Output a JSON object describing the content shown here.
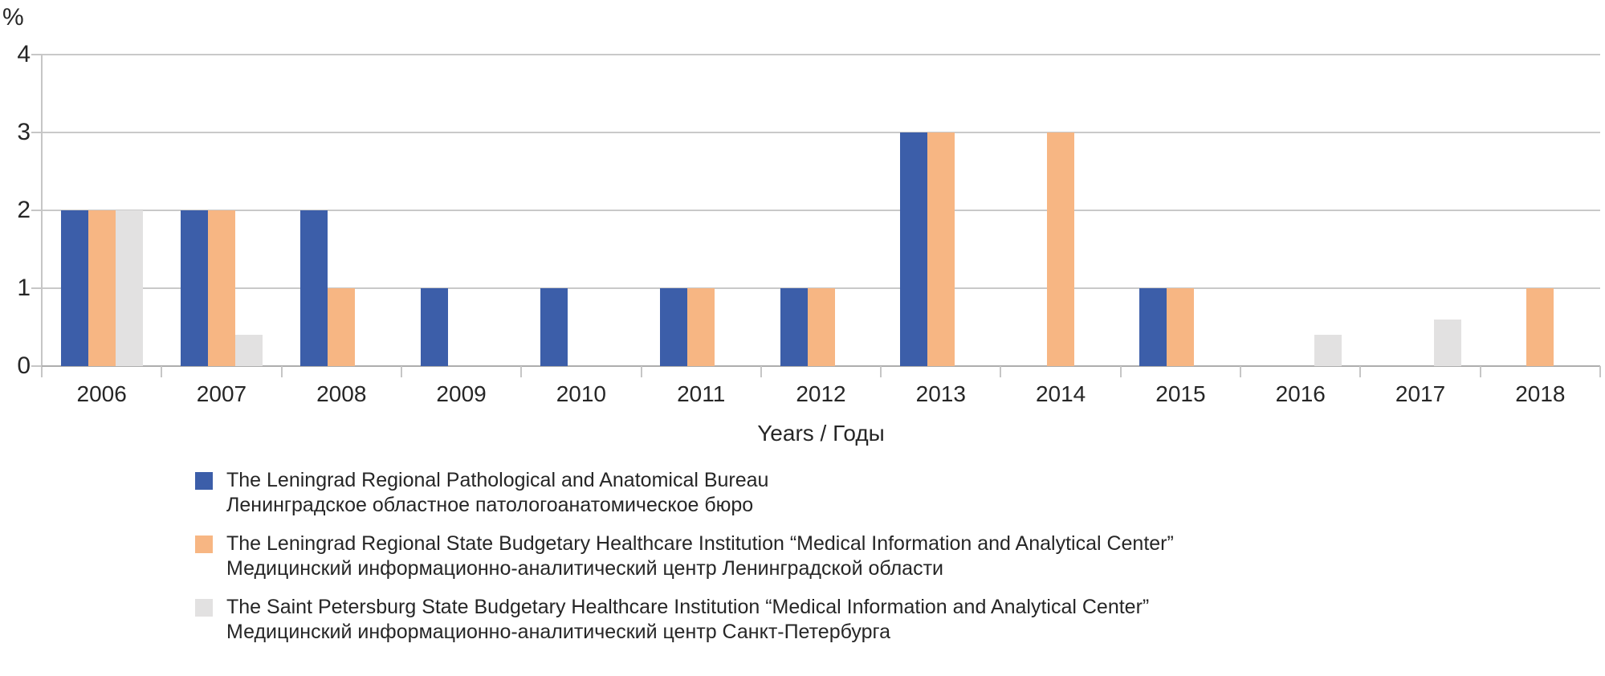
{
  "chart_data": {
    "type": "bar",
    "title": "",
    "ylabel": "%",
    "xlabel": "Years / Годы",
    "categories": [
      "2006",
      "2007",
      "2008",
      "2009",
      "2010",
      "2011",
      "2012",
      "2013",
      "2014",
      "2015",
      "2016",
      "2017",
      "2018"
    ],
    "ylim": [
      0,
      4
    ],
    "yticks": [
      0,
      1,
      2,
      3,
      4
    ],
    "grid": "horizontal",
    "legend_position": "bottom-left",
    "series": [
      {
        "name_en": "The Leningrad Regional Pathological and Anatomical Bureau",
        "name_ru": "Ленинградское областное патологоанатомическое бюро",
        "color": "#3c5ea9",
        "values": [
          2,
          2,
          2,
          1,
          1,
          1,
          1,
          3,
          0,
          1,
          0,
          0,
          0
        ]
      },
      {
        "name_en": "The Leningrad Regional State Budgetary Healthcare Institution “Medical Information and Analytical Center”",
        "name_ru": "Медицинский информационно-аналитический центр Ленинградской области",
        "color": "#f7b683",
        "values": [
          2,
          2,
          1,
          0,
          0,
          1,
          1,
          3,
          3,
          1,
          0,
          0,
          1
        ]
      },
      {
        "name_en": "The Saint Petersburg State Budgetary Healthcare Institution “Medical Information and Analytical Center”",
        "name_ru": "Медицинский информационно-аналитический центр Санкт-Петербурга",
        "color": "#e2e1e1",
        "values": [
          2,
          0.4,
          0,
          0,
          0,
          0,
          0,
          0,
          0,
          0,
          0.4,
          0.6,
          0
        ]
      }
    ]
  }
}
